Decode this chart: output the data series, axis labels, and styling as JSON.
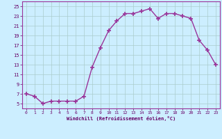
{
  "x": [
    0,
    1,
    2,
    3,
    4,
    5,
    6,
    7,
    8,
    9,
    10,
    11,
    12,
    13,
    14,
    15,
    16,
    17,
    18,
    19,
    20,
    21,
    22,
    23
  ],
  "y": [
    7,
    6.5,
    5,
    5.5,
    5.5,
    5.5,
    5.5,
    6.5,
    12.5,
    16.5,
    20,
    22,
    23.5,
    23.5,
    24,
    24.5,
    22.5,
    23.5,
    23.5,
    23,
    22.5,
    18,
    16,
    13
  ],
  "line_color": "#993399",
  "marker": "+",
  "marker_size": 4,
  "marker_lw": 1.2,
  "line_width": 1.0,
  "bg_color": "#cceeff",
  "grid_color": "#aacccc",
  "xlabel": "Windchill (Refroidissement éolien,°C)",
  "xlabel_color": "#660066",
  "xlim": [
    -0.5,
    23.5
  ],
  "ylim": [
    4,
    26
  ],
  "yticks": [
    5,
    7,
    9,
    11,
    13,
    15,
    17,
    19,
    21,
    23,
    25
  ],
  "xticks": [
    0,
    1,
    2,
    3,
    4,
    5,
    6,
    7,
    8,
    9,
    10,
    11,
    12,
    13,
    14,
    15,
    16,
    17,
    18,
    19,
    20,
    21,
    22,
    23
  ],
  "tick_color": "#660066",
  "spine_color": "#993399",
  "figsize": [
    3.2,
    2.0
  ],
  "dpi": 100
}
